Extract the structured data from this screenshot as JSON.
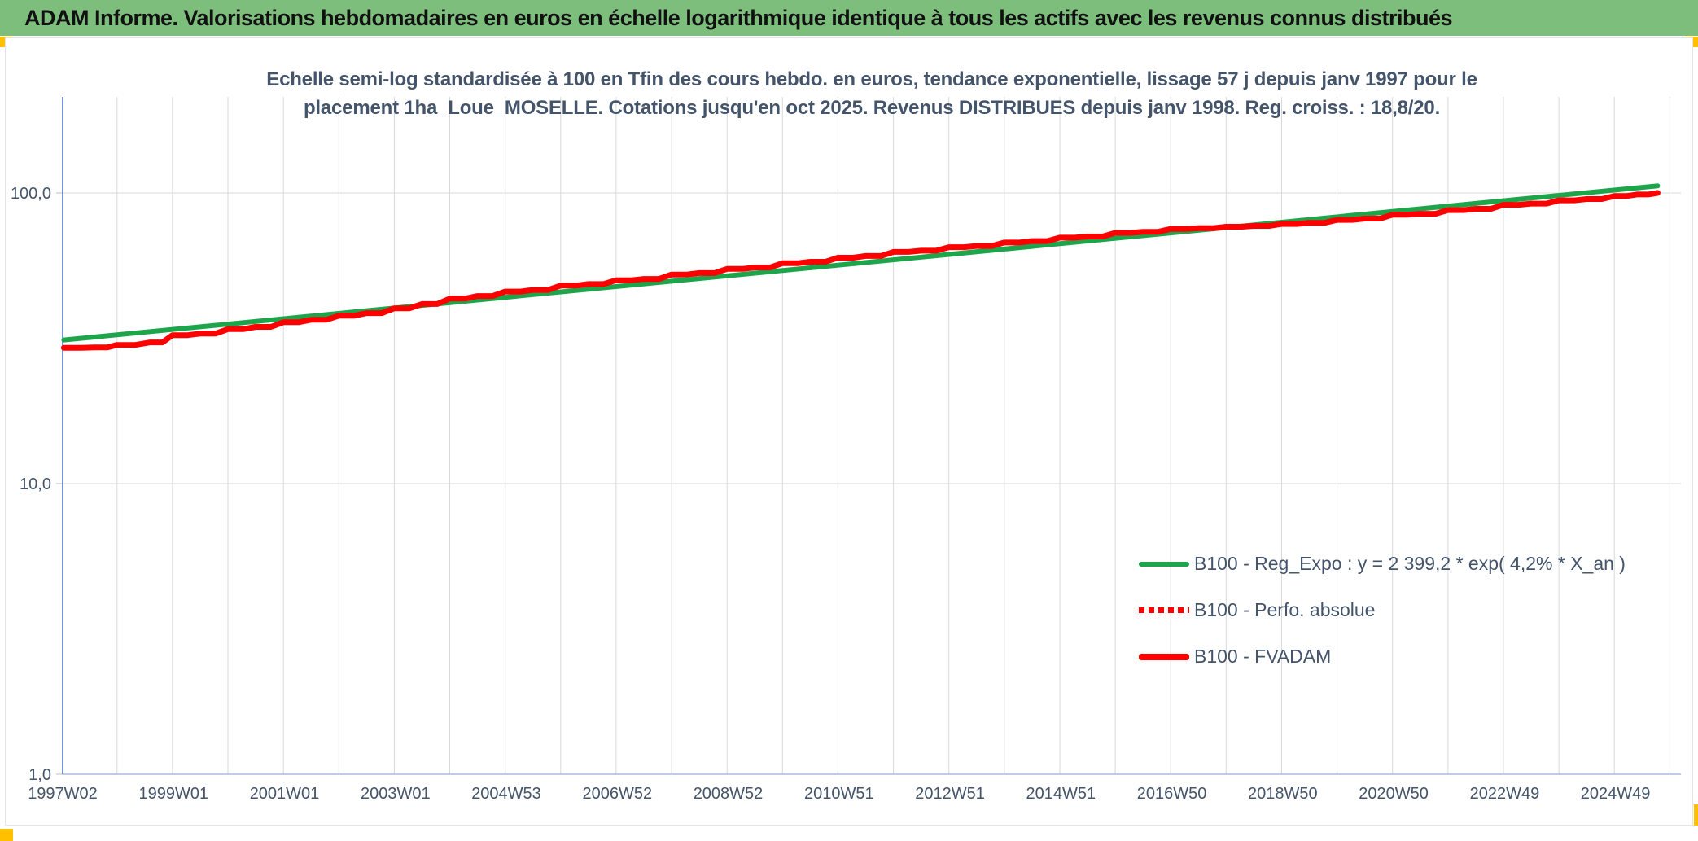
{
  "header": {
    "title": "ADAM Informe. Valorisations hebdomadaires en euros en échelle logarithmique identique à tous les actifs avec les revenus connus distribués",
    "bg_color": "#7DBE7D",
    "accent_color": "#FFC000"
  },
  "chart_data": {
    "type": "line",
    "title_line1": "Echelle semi-log standardisée à 100 en Tfin des cours hebdo. en euros, tendance exponentielle, lissage 57 j depuis janv 1997 pour le",
    "title_line2": "placement 1ha_Loue_MOSELLE. Cotations jusqu'en oct 2025. Revenus DISTRIBUES depuis janv 1998. Reg. croiss. : 18,8/20.",
    "x_axis": {
      "kind": "weekly-time",
      "start_year": 1997.02,
      "end_year": 2026.2,
      "gridline_every_years": 1,
      "tick_labels": [
        "1997W02",
        "1999W01",
        "2001W01",
        "2003W01",
        "2004W53",
        "2006W52",
        "2008W52",
        "2010W51",
        "2012W51",
        "2014W51",
        "2016W50",
        "2018W50",
        "2020W50",
        "2022W49",
        "2024W49"
      ]
    },
    "y_axis": {
      "scale": "log10",
      "tick_labels": [
        "100,0",
        "10,0",
        "1,0"
      ],
      "tick_values": [
        100,
        10,
        1
      ],
      "ylim": [
        1,
        214
      ],
      "grid": true
    },
    "legend_position": "inside-bottom-right",
    "legend": [
      {
        "label": "B100 - Reg_Expo : y = 2 399,2 * exp( 4,2% *  X_an )",
        "color": "#1EA54B",
        "style": "solid-line"
      },
      {
        "label": "B100 - Perfo. absolue",
        "color": "#FF0000",
        "style": "dotted-line"
      },
      {
        "label": "B100 - FVADAM",
        "color": "#FF0000",
        "style": "solid-line-thick"
      }
    ],
    "series": [
      {
        "name": "B100 - Reg_Expo : y = 2 399,2 * exp( 4,2% *  X_an )",
        "color": "#1EA54B",
        "width": 6,
        "style": "solid",
        "stepped": false,
        "note": "exponential trend, straight on log scale",
        "points": [
          [
            1997.04,
            31.2
          ],
          [
            2025.78,
            105.8
          ]
        ]
      },
      {
        "name": "B100 - Perfo. absolue",
        "color": "#FF0000",
        "width": 5,
        "style": "dotted",
        "stepped": true,
        "same_points_as": "B100 - FVADAM",
        "note": "overlaps the FVADAM curve, hidden beneath it"
      },
      {
        "name": "B100 - FVADAM",
        "color": "#FF0000",
        "width": 7,
        "style": "solid",
        "stepped": true,
        "points": [
          [
            1997.04,
            29.3
          ],
          [
            1997.6,
            29.4
          ],
          [
            1998.0,
            30.0
          ],
          [
            1998.6,
            30.6
          ],
          [
            1999.0,
            32.4
          ],
          [
            1999.5,
            32.8
          ],
          [
            2000.0,
            34.0
          ],
          [
            2000.5,
            34.6
          ],
          [
            2001.0,
            35.9
          ],
          [
            2001.5,
            36.6
          ],
          [
            2002.0,
            37.8
          ],
          [
            2002.5,
            38.6
          ],
          [
            2003.0,
            40.1
          ],
          [
            2003.5,
            41.5
          ],
          [
            2004.0,
            43.3
          ],
          [
            2004.5,
            44.2
          ],
          [
            2005.0,
            45.8
          ],
          [
            2005.5,
            46.4
          ],
          [
            2006.0,
            48.0
          ],
          [
            2006.5,
            48.6
          ],
          [
            2007.0,
            50.1
          ],
          [
            2007.5,
            50.6
          ],
          [
            2008.0,
            52.4
          ],
          [
            2008.5,
            53.0
          ],
          [
            2009.0,
            54.8
          ],
          [
            2009.5,
            55.4
          ],
          [
            2010.0,
            57.3
          ],
          [
            2010.5,
            58.0
          ],
          [
            2011.0,
            59.9
          ],
          [
            2011.5,
            60.7
          ],
          [
            2012.0,
            62.7
          ],
          [
            2012.5,
            63.3
          ],
          [
            2013.0,
            65.1
          ],
          [
            2013.5,
            65.7
          ],
          [
            2014.0,
            67.5
          ],
          [
            2014.5,
            68.3
          ],
          [
            2015.0,
            70.2
          ],
          [
            2015.5,
            70.8
          ],
          [
            2016.0,
            72.9
          ],
          [
            2016.5,
            73.5
          ],
          [
            2017.0,
            75.2
          ],
          [
            2017.5,
            75.7
          ],
          [
            2018.0,
            76.5
          ],
          [
            2018.5,
            77.0
          ],
          [
            2019.0,
            78.2
          ],
          [
            2019.5,
            78.9
          ],
          [
            2020.0,
            80.8
          ],
          [
            2020.5,
            81.6
          ],
          [
            2021.0,
            84.1
          ],
          [
            2021.5,
            84.8
          ],
          [
            2022.0,
            87.3
          ],
          [
            2022.5,
            88.2
          ],
          [
            2023.0,
            91.0
          ],
          [
            2023.5,
            91.9
          ],
          [
            2024.0,
            94.3
          ],
          [
            2024.5,
            95.3
          ],
          [
            2025.0,
            97.6
          ],
          [
            2025.4,
            98.8
          ],
          [
            2025.78,
            100.0
          ]
        ]
      }
    ],
    "colors": {
      "grid": "#D9D9D9",
      "y_axis_line": "#4472C4",
      "x_axis_line": "#A9BCE4",
      "tick_text": "#44546A"
    }
  }
}
